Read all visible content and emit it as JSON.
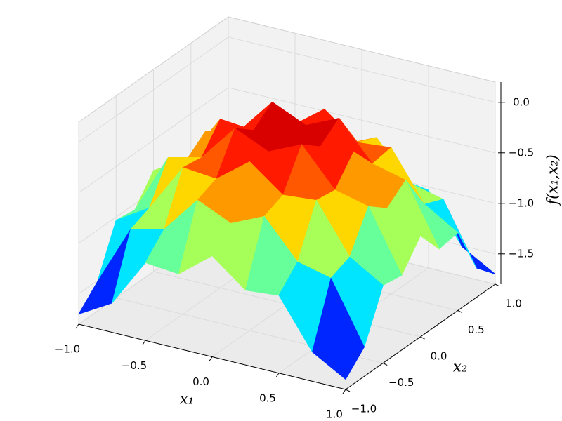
{
  "chart_data": {
    "type": "surface3d",
    "xlabel": "x₁",
    "ylabel": "x₂",
    "zlabel": "f(x₁,x₂)",
    "x": [
      -1,
      -0.75,
      -0.5,
      -0.25,
      0,
      0.25,
      0.5,
      0.75,
      1
    ],
    "y": [
      -1,
      -0.75,
      -0.5,
      -0.25,
      0,
      0.25,
      0.5,
      0.75,
      1
    ],
    "z": [
      [
        -1.7,
        -1.51,
        -1.03,
        -1.06,
        -0.8,
        -1.06,
        -1.03,
        -1.51,
        -1.7
      ],
      [
        -1.51,
        -0.91,
        -0.83,
        -0.46,
        -0.61,
        -0.46,
        -0.83,
        -0.91,
        -1.51
      ],
      [
        -1.03,
        -0.83,
        -0.35,
        -0.38,
        -0.13,
        -0.38,
        -0.35,
        -0.83,
        -1.03
      ],
      [
        -1.06,
        -0.46,
        -0.38,
        -0.01,
        -0.16,
        -0.01,
        -0.38,
        -0.46,
        -1.06
      ],
      [
        -0.8,
        -0.61,
        -0.13,
        -0.16,
        0.1,
        -0.16,
        -0.13,
        -0.61,
        -0.8
      ],
      [
        -1.06,
        -0.46,
        -0.38,
        -0.01,
        -0.16,
        -0.01,
        -0.38,
        -0.46,
        -1.06
      ],
      [
        -1.03,
        -0.83,
        -0.35,
        -0.38,
        -0.13,
        -0.38,
        -0.35,
        -0.83,
        -1.03
      ],
      [
        -1.51,
        -0.91,
        -0.83,
        -0.46,
        -0.61,
        -0.46,
        -0.83,
        -0.91,
        -1.51
      ],
      [
        -1.7,
        -1.51,
        -1.03,
        -1.06,
        -0.8,
        -1.06,
        -1.03,
        -1.51,
        -1.7
      ]
    ],
    "xlim": [
      -1,
      1
    ],
    "ylim": [
      -1,
      1
    ],
    "zlim": [
      -1.8,
      0.2
    ],
    "xticks": [
      {
        "value": -1,
        "label": "−1.0"
      },
      {
        "value": -0.5,
        "label": "−0.5"
      },
      {
        "value": 0,
        "label": "0.0"
      },
      0.5,
      {
        "value": 1,
        "label": "1.0"
      }
    ],
    "yticks": [
      {
        "value": -1,
        "label": "−1.0"
      },
      {
        "value": -0.5,
        "label": "−0.5"
      },
      {
        "value": 0,
        "label": "0.0"
      },
      0.5,
      {
        "value": 1,
        "label": "1.0"
      }
    ],
    "zticks": [
      {
        "value": -1.5,
        "label": "−1.5"
      },
      {
        "value": -1,
        "label": "−1.0"
      },
      {
        "value": -0.5,
        "label": "−0.5"
      },
      {
        "value": 0,
        "label": "0.0"
      }
    ],
    "colormap": "jet",
    "grid": true
  }
}
